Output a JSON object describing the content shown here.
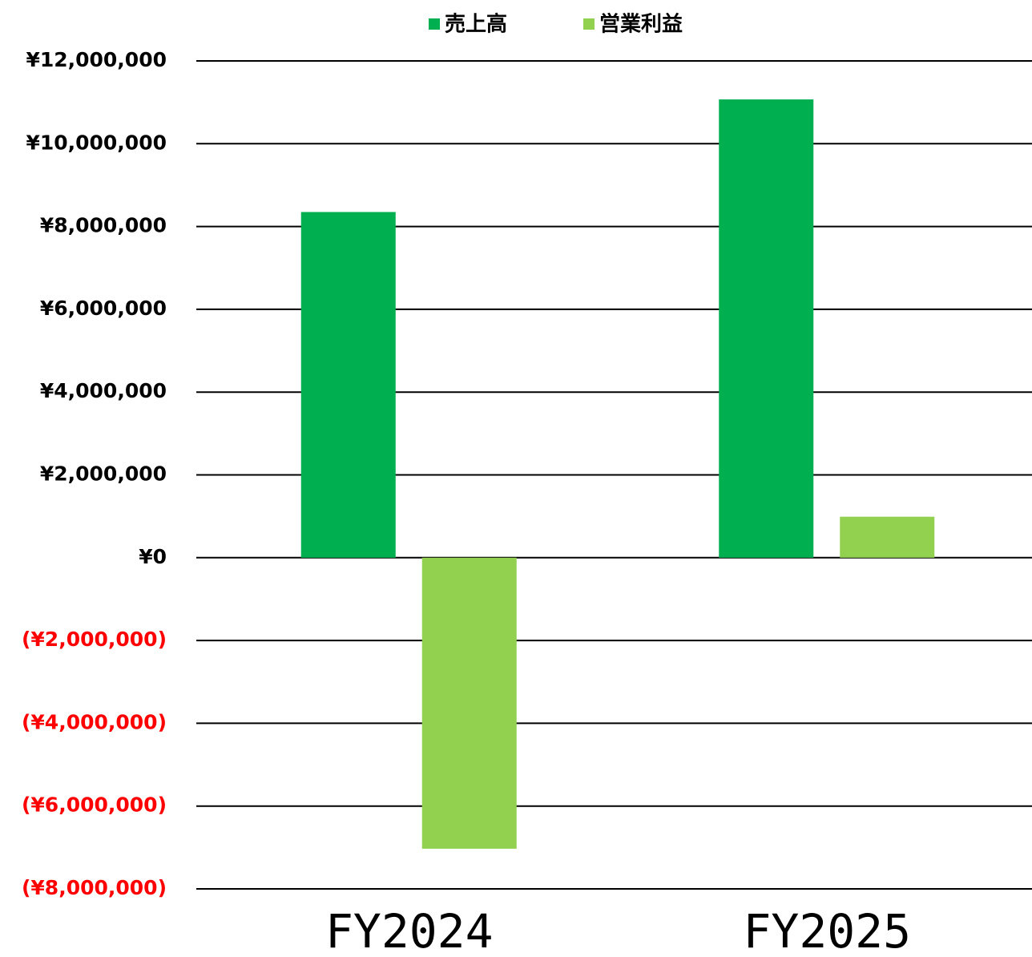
{
  "chart_data": {
    "type": "bar",
    "categories": [
      "FY2024",
      "FY2025"
    ],
    "series": [
      {
        "name": "売上高",
        "color": "#00b050",
        "values": [
          8350000,
          11070000
        ]
      },
      {
        "name": "営業利益",
        "color": "#92d050",
        "values": [
          -7030000,
          990000
        ]
      }
    ],
    "ylim": [
      -8000000,
      12000000
    ],
    "yticks": [
      {
        "value": -8000000,
        "label": "(¥8,000,000)"
      },
      {
        "value": -6000000,
        "label": "(¥6,000,000)"
      },
      {
        "value": -4000000,
        "label": "(¥4,000,000)"
      },
      {
        "value": -2000000,
        "label": "(¥2,000,000)"
      },
      {
        "value": 0,
        "label": "¥0"
      },
      {
        "value": 2000000,
        "label": "¥2,000,000"
      },
      {
        "value": 4000000,
        "label": "¥4,000,000"
      },
      {
        "value": 6000000,
        "label": "¥6,000,000"
      },
      {
        "value": 8000000,
        "label": "¥8,000,000"
      },
      {
        "value": 10000000,
        "label": "¥10,000,000"
      },
      {
        "value": 12000000,
        "label": "¥12,000,000"
      }
    ],
    "negative_tick_color": "#ff0000",
    "grid": true,
    "legend": "top"
  }
}
